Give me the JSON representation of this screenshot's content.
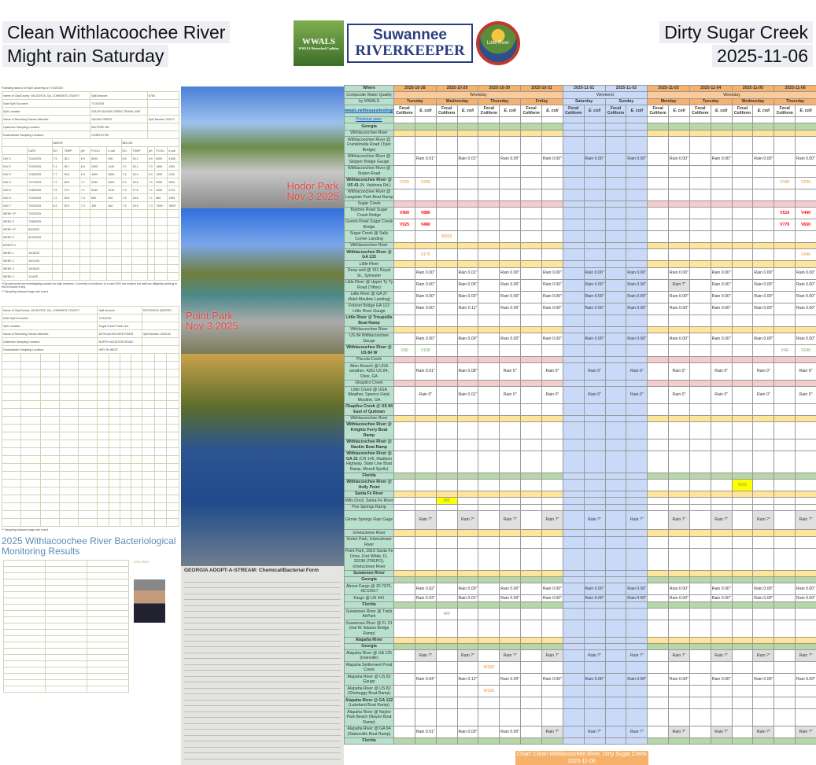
{
  "header": {
    "left_line1": "Clean Withlacoochee River",
    "left_line2": "Might rain Saturday",
    "right_line1": "Dirty Sugar Creek",
    "right_line2": "2025-11-06"
  },
  "logos": {
    "wwals": "WWALS",
    "wwals_sub": "WWALS Watershed Coalition",
    "sr_top": "Suwannee",
    "sr_bottom": "RIVERKEEPER",
    "lr": "Little River"
  },
  "spill1": {
    "intro": "Following data is for Spill occurring on 7/13/2025:",
    "info": [
      [
        "Name of City/County: VALDOSTA, GA, LOWNDES COUNTY",
        "Spill Amount:",
        "6750"
      ],
      [
        "Date Spill Occurred:",
        "7/13/2025",
        ""
      ],
      [
        "Spill Location:",
        "SOUTH SUGAR CREEK TRUNK LINE",
        ""
      ],
      [
        "Name of Receiving Stream Affected:",
        "SUGAR CREEK",
        "Spill Number 2025-2"
      ],
      [
        "Upstream Sampling Location:",
        "BAYTREE RD.",
        ""
      ],
      [
        "Downstream Sampling Location:",
        "GORNTO RD.",
        ""
      ]
    ],
    "groups": [
      "ABOVE",
      "BELOW"
    ],
    "columns": [
      "",
      "DATE",
      "DO",
      "TEMP",
      "pH",
      "FCOLI",
      "e-coli",
      "DO",
      "TEMP",
      "pH",
      "FCOLI",
      "e-coli"
    ],
    "rows": [
      [
        "DAY 1",
        "7/14/2025",
        "7.5",
        "26.1",
        "6.9",
        "5040",
        "930",
        "6.8",
        "26.2",
        "6.9",
        "6000",
        "3,800"
      ],
      [
        "DAY 2",
        "7/15/2025",
        "7.4",
        "25.7",
        "6.9",
        "2400",
        "1140",
        "7.0",
        "26.1",
        "7.0",
        "1450",
        "1290"
      ],
      [
        "DAY 3",
        "7/16/2025",
        "7.7",
        "25.6",
        "6.9",
        "4000",
        "2800",
        "7.4",
        "26.0",
        "6.9",
        "1200",
        "1140"
      ],
      [
        "DAY 4",
        "7/17/2025",
        "7.2",
        "26.6",
        "7.1",
        "2250",
        "2000",
        "6.9",
        "33.8",
        "7.0",
        "2050",
        "2000"
      ],
      [
        "DAY 5",
        "7/18/2025",
        "7.5",
        "27.9",
        "7.1",
        "5140",
        "3210",
        "7.3",
        "27.8",
        "7.1",
        "3250",
        "3170"
      ],
      [
        "DAY 6",
        "7/19/2025",
        "7.2",
        "29.8",
        "7.3",
        "830",
        "900",
        "7.5",
        "28.6",
        "7.1",
        "850",
        "1495"
      ],
      [
        "DAY 7",
        "7/20/2025",
        "8.9",
        "30.9",
        "7.3",
        "330",
        "340",
        "7.9",
        "29.9",
        "7.3",
        "7300*",
        "7600*"
      ],
      [
        "WEEK 2**",
        "7/22/2025",
        "",
        "",
        "",
        "",
        "",
        "",
        "",
        "",
        "",
        ""
      ],
      [
        "WEEK 3",
        "7/28/2025",
        "",
        "",
        "",
        "",
        "",
        "",
        "",
        "",
        "",
        ""
      ],
      [
        "WEEK 4**",
        "8/4/2025",
        "",
        "",
        "",
        "",
        "",
        "",
        "",
        "",
        "",
        ""
      ],
      [
        "WEEK 5",
        "8/12/2025",
        "",
        "",
        "",
        "",
        "",
        "",
        "",
        "",
        "",
        ""
      ],
      [
        "MONTH 1",
        "",
        "",
        "",
        "",
        "",
        "",
        "",
        "",
        "",
        "",
        ""
      ],
      [
        "WEEK 1",
        "10/16/25",
        "",
        "",
        "",
        "",
        "",
        "",
        "",
        "",
        "",
        ""
      ],
      [
        "WEEK 2",
        "10/21/25",
        "",
        "",
        "",
        "",
        "",
        "",
        "",
        "",
        "",
        ""
      ],
      [
        "WEEK 3",
        "10/28/25",
        "",
        "",
        "",
        "",
        "",
        "",
        "",
        "",
        "",
        ""
      ],
      [
        "WEEK 4",
        "11/4/25",
        "",
        "",
        "",
        "",
        "",
        "",
        "",
        "",
        "",
        ""
      ]
    ],
    "note1": "*City personnel are investigating causes for high numbers. Currently no evidence of a new SSO are evident but staff are diligently working to find a source if any.",
    "note2": "** Sampling followed large rain event."
  },
  "spill2": {
    "info": [
      [
        "Name of City/County: VALDOSTA, GA, LOWNDES COUNTY",
        "Spill Amount:",
        "RECEIVING WATERS"
      ],
      [
        "Date Spill Occurred:",
        "7/13/2025",
        ""
      ],
      [
        "Spill Location:",
        "Sugar Creek Trunk Line",
        ""
      ],
      [
        "Name of Receiving Stream Affected:",
        "WITHLACOOCHEE RIVER",
        "Spill Number 2025-02"
      ],
      [
        "Upstream Sampling Location:",
        "NORTH VALDOSTA ROAD",
        ""
      ],
      [
        "Downstream Sampling Location:",
        "HWY 84 WEST",
        ""
      ]
    ],
    "note2": "** Sampling followed large rain event."
  },
  "results": {
    "title": "2025 Withlacoochee River Bacteriological Monitoring Results",
    "sidebar_title": "UTILITIES"
  },
  "photos": [
    {
      "caption1": "Hodor Park",
      "caption2": "Nov 3 2025"
    },
    {
      "caption1": "Point Park",
      "caption2": "Nov 3 2025"
    }
  ],
  "form": {
    "title": "GEORGIA ADOPT-A-STREAM: Chemical/Bacterial Form"
  },
  "table": {
    "where": "Where",
    "subtitle1": "Composite Water Quality",
    "subtitle2": "by WWALS",
    "link": "wwals.net/issues/testing/",
    "prev_year": "Previous year:",
    "dates": [
      "2025-10-28",
      "2025-10-29",
      "2025-10-30",
      "2025-10-31",
      "2025-11-01",
      "2025-11-02",
      "2025-11-03",
      "2025-11-04",
      "2025-11-05",
      "2025-11-06"
    ],
    "days": [
      "Tuesday",
      "Wednesday",
      "Thursday",
      "Friday",
      "Saturday",
      "Sunday",
      "Monday",
      "Tuesday",
      "Wednesday",
      "Thursday"
    ],
    "periods": [
      "Weekday",
      "Weekend",
      "Weekday"
    ],
    "fecal": "Fecal Coliform",
    "ecoli": "E. coli",
    "colors": {
      "section_green": "#b6d7a8",
      "section_yellow": "#ffe599",
      "section_pink": "#f4cccc",
      "weekend": "#c9daf8",
      "header": "#f6b26b",
      "label": "#b7e1cd",
      "orange": "#e69138",
      "red": "#ff0000",
      "green": "#6aa84f",
      "yellow_bg": "#ffff00"
    },
    "rows": [
      {
        "sec": "g",
        "label": "Georgia",
        "bold": true
      },
      {
        "sec": "y",
        "label": "Withlacoochee River"
      },
      {
        "label": "Withlacoochee River @ Franklinville Road (Tyler Bridge)"
      },
      {
        "label": "Withlacoochee River @ Skipper Bridge Gauge",
        "rain": [
          "Rain 0.01\"",
          "Rain 0.01\"",
          "Rain 0.00\"",
          "Rain 0.00\"",
          "Rain 0.00\"",
          "Rain 0.00\"",
          "Rain 0.00\"",
          "Rain 0.00\"",
          "Rain 0.00\"",
          "Rain 0.00\""
        ]
      },
      {
        "label": "Withlacoochee River @ Staten Road"
      },
      {
        "boldpart": "Withlacoochee River @ US 41",
        "label": " (N. Valdosta Rd.)",
        "readings": [
          {
            "date": "2025-10-28",
            "type": "fecal",
            "value": "V220",
            "color": "orange"
          },
          {
            "date": "2025-10-28",
            "type": "ecoli",
            "value": "V280",
            "color": "orange"
          },
          {
            "date": "2025-11-06",
            "type": "fecal",
            "value": "V190",
            "color": "orange"
          },
          {
            "date": "2025-11-06",
            "type": "ecoli",
            "value": "V290",
            "color": "orange"
          }
        ]
      },
      {
        "label": "Withlacoochee River @ Langdale Park Boat Ramp"
      },
      {
        "sec": "p",
        "label": "Sugar Creek"
      },
      {
        "label": "Baytree Road Sugar Creek Bridge",
        "readings": [
          {
            "date": "2025-10-28",
            "type": "fecal",
            "value": "V900",
            "color": "red"
          },
          {
            "date": "2025-10-28",
            "type": "ecoli",
            "value": "V880",
            "color": "red"
          },
          {
            "date": "2025-11-06",
            "type": "fecal",
            "value": "V510",
            "color": "red"
          },
          {
            "date": "2025-11-06",
            "type": "ecoli",
            "value": "V440",
            "color": "red"
          }
        ]
      },
      {
        "label": "Gornto Road Sugar Creek Bridge",
        "readings": [
          {
            "date": "2025-10-28",
            "type": "fecal",
            "value": "V525",
            "color": "red"
          },
          {
            "date": "2025-10-28",
            "type": "ecoli",
            "value": "V480",
            "color": "red"
          },
          {
            "date": "2025-11-06",
            "type": "fecal",
            "value": "V770",
            "color": "red"
          },
          {
            "date": "2025-11-06",
            "type": "ecoli",
            "value": "V650",
            "color": "red"
          }
        ]
      },
      {
        "label": "Sugar Creek @ Sally Corner Landing",
        "readings": [
          {
            "date": "2025-10-29",
            "type": "fecal",
            "value": "W333",
            "color": "orange"
          }
        ]
      },
      {
        "sec": "y",
        "label": "Withlacoochee River"
      },
      {
        "boldpart": "Withlacoochee River @ GA 133",
        "label": "",
        "readings": [
          {
            "date": "2025-10-28",
            "type": "ecoli",
            "value": "V170",
            "color": "orange"
          },
          {
            "date": "2025-11-06",
            "type": "ecoli",
            "value": "V340",
            "color": "orange"
          }
        ]
      },
      {
        "sec": "y",
        "label": "Little River"
      },
      {
        "label": "Deep well @ 161 Royal St., Sylvester",
        "rain": [
          "Rain 0.00\"",
          "Rain 0.01\"",
          "Rain 0.00\"",
          "Rain 0.00\"",
          "Rain 0.00\"",
          "Rain 0.00\"",
          "Rain 0.00\"",
          "Rain 0.00\"",
          "Rain 0.00\"",
          "Rain 0.00\""
        ]
      },
      {
        "label": "Little River @ Upper Ty Ty Road (Tifton)",
        "rain": [
          "Rain 0.00\"",
          "Rain 0.05\"",
          "Rain 0.00\"",
          "Rain 0.00\"",
          "Rain 0.00\"",
          "Rain 0.00\"",
          "Rain ?\"",
          "Rain 0.00\"",
          "Rain 0.00\"",
          "Rain 0.00\""
        ]
      },
      {
        "label": "Little River @ GA 37 (Adel-Moultrie Landing)",
        "rain": [
          "Rain 0.00\"",
          "Rain 0.02\"",
          "Rain 0.00\"",
          "Rain 0.00\"",
          "Rain 0.00\"",
          "Rain 0.00\"",
          "Rain 0.00\"",
          "Rain 0.00\"",
          "Rain 0.00\"",
          "Rain 0.00\""
        ]
      },
      {
        "label": "Folsom Bridge GA 122 Little River Gauge",
        "rain": [
          "Rain 0.00\"",
          "Rain 0.11\"",
          "Rain 0.00\"",
          "Rain 0.00\"",
          "Rain 0.00\"",
          "Rain 0.00\"",
          "Rain 0.00\"",
          "Rain 0.00\"",
          "Rain 0.00\"",
          "Rain 0.00\""
        ]
      },
      {
        "boldpart": "Little River @ Troupville Boat Ramp",
        "label": ""
      },
      {
        "sec": "y",
        "label": "Withlacoochee River"
      },
      {
        "label": "US 84 Withlacoochee Gauge",
        "rain": [
          "Rain 0.00\"",
          "Rain 0.00\"",
          "Rain 0.00\"",
          "Rain 0.00\"",
          "Rain 0.00\"",
          "Rain 0.00\"",
          "Rain 0.00\"",
          "Rain 0.00\"",
          "Rain 0.00\"",
          "Rain 0.00\""
        ]
      },
      {
        "boldpart": "Withlacoochee River @ US 84 W",
        "label": "",
        "readings": [
          {
            "date": "2025-10-28",
            "type": "fecal",
            "value": "V90",
            "color": "green"
          },
          {
            "date": "2025-10-28",
            "type": "ecoli",
            "value": "V100",
            "color": "green"
          },
          {
            "date": "2025-11-06",
            "type": "fecal",
            "value": "V40",
            "color": "green"
          },
          {
            "date": "2025-11-06",
            "type": "ecoli",
            "value": "V140",
            "color": "green"
          }
        ]
      },
      {
        "sec": "p",
        "label": "Piscola Creek"
      },
      {
        "label": "Allen Branch @ UGA weather, 4281 US 84, Dixie, GA",
        "rain": [
          "Rain 0.01\"",
          "Rain 0.08\"",
          "Rain 0\"",
          "Rain 0\"",
          "Rain 0\"",
          "Rain 0\"",
          "Rain 0\"",
          "Rain 0\"",
          "Rain 0\"",
          "Rain 0\""
        ]
      },
      {
        "sec": "p",
        "label": "Okapilco Creek"
      },
      {
        "label": "Little Creek @ UGA Weather, Spence Field, Moultrie, GA",
        "rain": [
          "Rain 0\"",
          "Rain 0.01\"",
          "Rain 0\"",
          "Rain 0\"",
          "Rain 0\"",
          "Rain 0\"",
          "Rain 0\"",
          "Rain 0\"",
          "Rain 0\"",
          "Rain 0\""
        ]
      },
      {
        "boldpart": "Okapilco Creek @ US 84 East of Quitman",
        "label": ""
      },
      {
        "sec": "y",
        "label": "Withlacoochee River"
      },
      {
        "boldpart": "Withlacoochee River @ Knights Ferry Boat Ramp",
        "label": ""
      },
      {
        "boldpart": "Withlacoochee River @ Nankin Boat Ramp",
        "label": ""
      },
      {
        "boldpart": "Withlacoochee River @ GA 31",
        "label": " (CR 145, Madison Highway, State Line Boat Ramp, Mozell Spells)"
      },
      {
        "sec": "g",
        "label": "Florida",
        "bold": true
      },
      {
        "boldpart": "Withlacoochee River @ Holly Point",
        "label": "",
        "readings": [
          {
            "date": "2025-11-05",
            "type": "fecal",
            "value": "W33",
            "color": "yellowbg"
          }
        ]
      },
      {
        "sec": "y",
        "label": "Santa Fe River",
        "bold": true
      },
      {
        "label": "Mills Dock, Santa Fe River",
        "readings": [
          {
            "date": "2025-10-29",
            "type": "fecal",
            "value": "W0",
            "color": "yellowbg"
          }
        ]
      },
      {
        "label": "Poe Springs Ramp"
      },
      {
        "label": "Ginnie Springs Rain Gage",
        "tall": true,
        "rain": [
          "Rain ?\"",
          "Rain ?\"",
          "Rain ?\"",
          "Rain ?\"",
          "Rain ?\"",
          "Rain ?\"",
          "Rain ?\"",
          "Rain ?\"",
          "Rain ?\"",
          "Rain ?\""
        ]
      },
      {
        "sec": "y",
        "label": "Ichetucknee River"
      },
      {
        "label": "Hodor Park, Ichetucknee River"
      },
      {
        "label": "Point Park, 2810 Santa Fe Drive, Fort White, FL 32038 (TREPO), Ichetucknee River"
      },
      {
        "sec": "y",
        "label": "Suwannee River",
        "bold": true
      },
      {
        "sec": "g",
        "label": "Georgia",
        "bold": true
      },
      {
        "label": "Above Fargo @ 30.7075, -82.53917",
        "rain": [
          "Rain 0.02\"",
          "Rain 0.00\"",
          "Rain 0.00\"",
          "Rain 0.00\"",
          "Rain 0.00\"",
          "Rain 0.00\"",
          "Rain 0.00\"",
          "Rain 0.00\"",
          "Rain 0.00\"",
          "Rain 0.00\""
        ]
      },
      {
        "label": "Fargo @ US 441",
        "rain": [
          "Rain 0.03\"",
          "Rain 0.01\"",
          "Rain 0.00\"",
          "Rain 0.00\"",
          "Rain 0.00\"",
          "Rain 0.00\"",
          "Rain 0.00\"",
          "Rain 0.00\"",
          "Rain 0.00\"",
          "Rain 0.00\""
        ]
      },
      {
        "sec": "g",
        "label": "Florida",
        "bold": true
      },
      {
        "label": "Suwannee River @ Trails AirPark",
        "readings": [
          {
            "date": "2025-10-29",
            "type": "fecal",
            "value": "W0",
            "color": "green"
          }
        ]
      },
      {
        "label": "Suwannee River @ FL 51 (Hal W. Adams Bridge Ramp)"
      },
      {
        "sec": "y",
        "label": "Alapaha River",
        "bold": true
      },
      {
        "sec": "g",
        "label": "Georgia",
        "bold": true
      },
      {
        "label": "Alapaha River @ GA 125 (Irwinville)",
        "rain": [
          "Rain ?\"",
          "Rain ?\"",
          "Rain ?\"",
          "Rain ?\"",
          "Rain ?\"",
          "Rain ?\"",
          "Rain ?\"",
          "Rain ?\"",
          "Rain ?\"",
          "Rain ?\""
        ]
      },
      {
        "label": "Alapaha Settlement Pond Creek",
        "readings": [
          {
            "date": "2025-10-30",
            "type": "fecal",
            "value": "W200",
            "color": "orange"
          }
        ]
      },
      {
        "label": "Alapaha River @ US 82 Gauge",
        "rain": [
          "Rain 0.04\"",
          "Rain 0.12\"",
          "Rain 0.00\"",
          "Rain 0.00\"",
          "Rain 0.00\"",
          "Rain 0.00\"",
          "Rain 0.00\"",
          "Rain 0.00\"",
          "Rain 0.00\"",
          "Rain 0.00\""
        ]
      },
      {
        "label": "Alapaha River @ US 82 (Sheboggy Boat Ramp)",
        "readings": [
          {
            "date": "2025-10-30",
            "type": "fecal",
            "value": "W100",
            "color": "orange"
          }
        ]
      },
      {
        "boldpart": "Alapaha River @ GA 122",
        "label": " (Lakeland Boat Ramp)"
      },
      {
        "label": "Alapaha River @ Naylor Park Beach (Naylor Boat Ramp)"
      },
      {
        "label": "Alapaha River @ GA 94 (Statenville Boat Ramp)",
        "rain": [
          "Rain 0.01\"",
          "Rain 0.00\"",
          "Rain 0.00\"",
          "Rain ?\"",
          "Rain ?\"",
          "Rain ?\"",
          "Rain ?\"",
          "Rain ?\"",
          "Rain ?\"",
          "Rain ?\""
        ]
      },
      {
        "sec": "g",
        "label": "Florida",
        "bold": true
      }
    ]
  },
  "chart_label": {
    "line1": "Chart: Clean Withlacoochee River, Dirty Sugar Creek",
    "line2": "2025-11-06"
  }
}
